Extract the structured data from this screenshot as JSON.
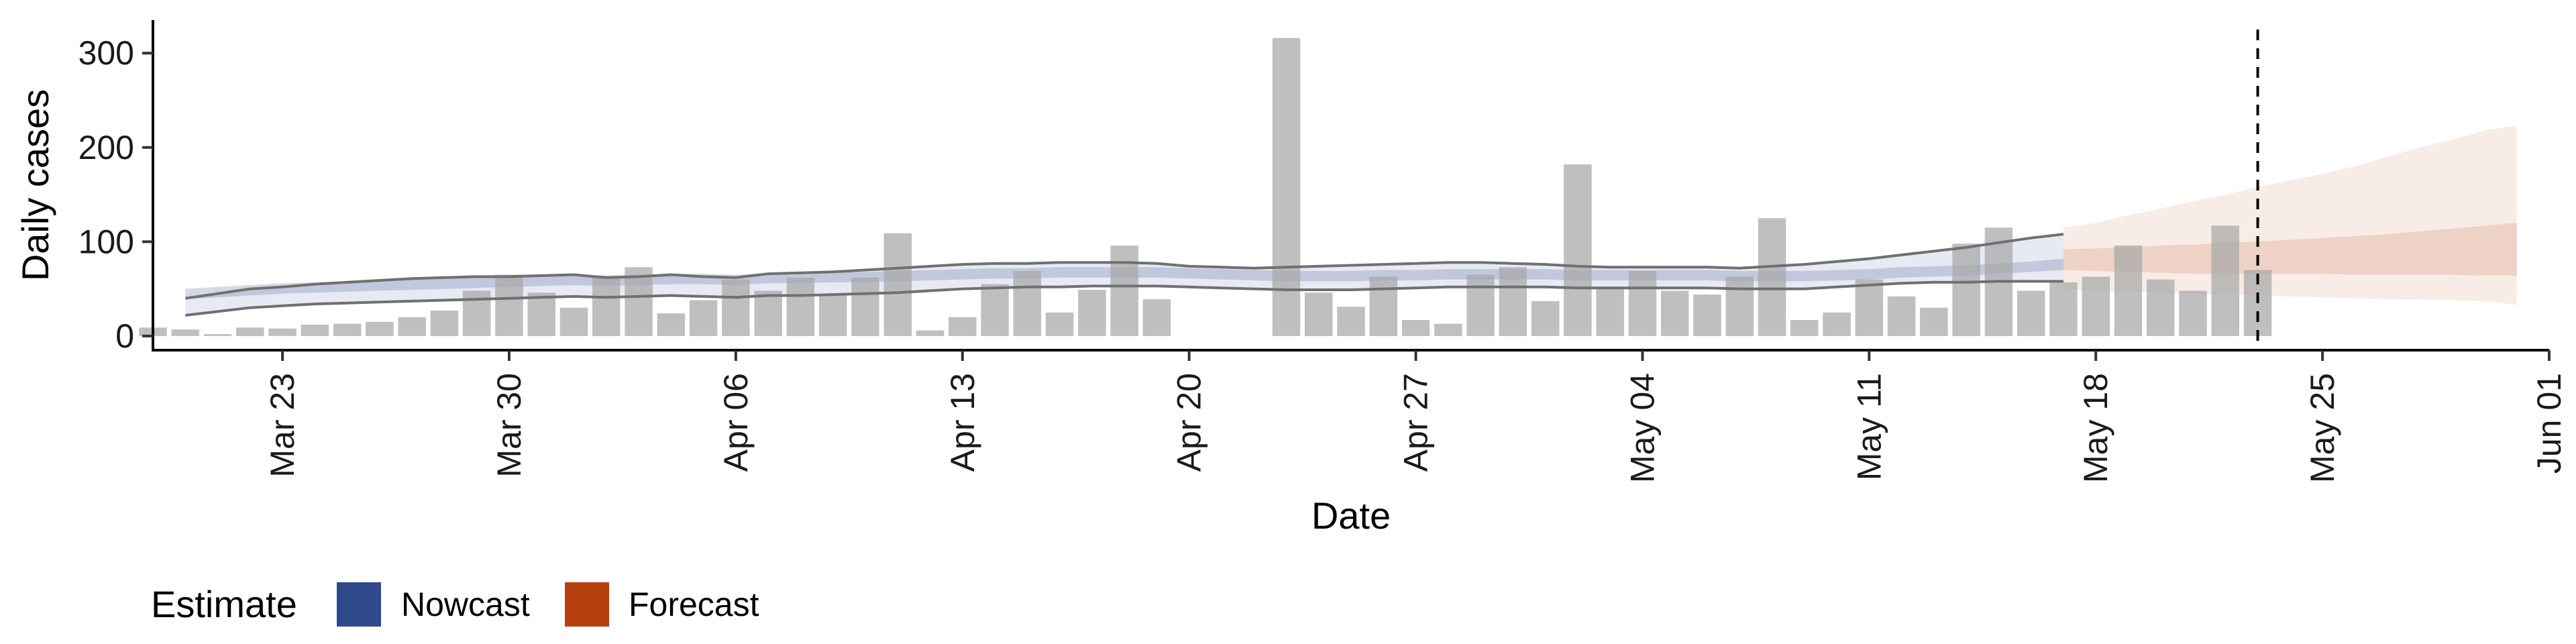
{
  "chart_data": {
    "type": "bar",
    "xlabel": "Date",
    "ylabel": "Daily cases",
    "x_start_date": "2020-03-19",
    "x_end_date": "2020-06-01",
    "ylim": [
      -15,
      335
    ],
    "yticks": [
      0,
      100,
      200,
      300
    ],
    "xticks": [
      {
        "date": "2020-03-23",
        "label": "Mar 23"
      },
      {
        "date": "2020-03-30",
        "label": "Mar 30"
      },
      {
        "date": "2020-04-06",
        "label": "Apr 06"
      },
      {
        "date": "2020-04-13",
        "label": "Apr 13"
      },
      {
        "date": "2020-04-20",
        "label": "Apr 20"
      },
      {
        "date": "2020-04-27",
        "label": "Apr 27"
      },
      {
        "date": "2020-05-04",
        "label": "May 04"
      },
      {
        "date": "2020-05-11",
        "label": "May 11"
      },
      {
        "date": "2020-05-18",
        "label": "May 18"
      },
      {
        "date": "2020-05-25",
        "label": "May 25"
      },
      {
        "date": "2020-06-01",
        "label": "Jun 01"
      }
    ],
    "bars": {
      "name": "Observed daily cases",
      "color": "#a6a6a6",
      "start_date": "2020-03-19",
      "values": [
        9,
        7,
        2,
        9,
        8,
        12,
        13,
        15,
        20,
        27,
        48,
        65,
        46,
        30,
        63,
        73,
        24,
        38,
        60,
        48,
        62,
        44,
        62,
        109,
        6,
        20,
        55,
        69,
        25,
        49,
        96,
        39,
        0,
        0,
        0,
        316,
        46,
        31,
        63,
        17,
        13,
        65,
        73,
        37,
        182,
        50,
        69,
        48,
        44,
        63,
        125,
        17,
        25,
        60,
        42,
        30,
        98,
        115,
        48,
        57,
        63,
        96,
        60,
        48,
        117,
        70
      ]
    },
    "nowcast": {
      "name": "Nowcast",
      "color": "#3a5390",
      "start_date": "2020-03-20",
      "inner_lower": [
        39,
        41,
        43,
        45,
        46,
        47,
        48,
        49,
        50,
        51,
        52,
        53,
        54,
        53,
        54,
        55,
        55,
        54,
        56,
        56,
        57,
        57,
        58,
        59,
        60,
        61,
        61,
        62,
        62,
        62,
        62,
        61,
        60,
        59,
        58,
        58,
        58,
        59,
        59,
        60,
        60,
        60,
        60,
        59,
        59,
        59,
        59,
        59,
        58,
        58,
        58,
        59,
        60,
        62,
        63,
        64,
        66,
        68,
        70
      ],
      "inner_upper": [
        50,
        52,
        54,
        56,
        57,
        58,
        59,
        60,
        61,
        62,
        63,
        64,
        65,
        64,
        65,
        66,
        66,
        65,
        67,
        67,
        68,
        68,
        69,
        70,
        71,
        72,
        72,
        73,
        73,
        73,
        73,
        72,
        71,
        70,
        69,
        69,
        69,
        70,
        70,
        71,
        71,
        71,
        71,
        70,
        70,
        70,
        70,
        70,
        69,
        69,
        69,
        70,
        71,
        73,
        74,
        75,
        77,
        79,
        82
      ],
      "outer_lower": [
        22,
        26,
        30,
        32,
        34,
        35,
        36,
        37,
        38,
        39,
        40,
        41,
        42,
        41,
        42,
        43,
        42,
        41,
        43,
        43,
        44,
        45,
        46,
        48,
        50,
        51,
        52,
        52,
        53,
        53,
        53,
        52,
        51,
        50,
        49,
        49,
        49,
        50,
        51,
        52,
        52,
        52,
        52,
        51,
        51,
        51,
        51,
        51,
        50,
        50,
        50,
        52,
        54,
        56,
        57,
        57,
        58,
        58,
        58
      ],
      "outer_upper": [
        40,
        45,
        50,
        52,
        55,
        57,
        59,
        61,
        62,
        63,
        63,
        64,
        65,
        62,
        63,
        65,
        63,
        62,
        66,
        67,
        68,
        70,
        72,
        74,
        76,
        77,
        77,
        78,
        78,
        78,
        77,
        74,
        73,
        72,
        73,
        74,
        75,
        76,
        77,
        78,
        78,
        77,
        76,
        74,
        73,
        73,
        73,
        73,
        72,
        74,
        76,
        79,
        82,
        86,
        90,
        94,
        99,
        104,
        108
      ]
    },
    "forecast": {
      "name": "Forecast",
      "color": "#b8400e",
      "start_date": "2020-05-17",
      "inner_lower": [
        70,
        69,
        68,
        67,
        66,
        66,
        66,
        66,
        66,
        65,
        65,
        65,
        65,
        64,
        64
      ],
      "inner_upper": [
        92,
        93,
        94,
        96,
        97,
        99,
        100,
        102,
        104,
        106,
        108,
        111,
        114,
        117,
        120
      ],
      "outer_lower": [
        50,
        48,
        47,
        46,
        45,
        44,
        43,
        42,
        41,
        40,
        39,
        39,
        38,
        37,
        33
      ],
      "outer_upper": [
        115,
        120,
        128,
        135,
        143,
        150,
        158,
        165,
        172,
        180,
        190,
        200,
        208,
        218,
        223
      ]
    },
    "vline_date": "2020-05-23",
    "legend": {
      "title": "Estimate",
      "items": [
        {
          "label": "Nowcast",
          "color": "#2f4a8a"
        },
        {
          "label": "Forecast",
          "color": "#b8400e"
        }
      ],
      "placement": "bottom-left"
    }
  }
}
